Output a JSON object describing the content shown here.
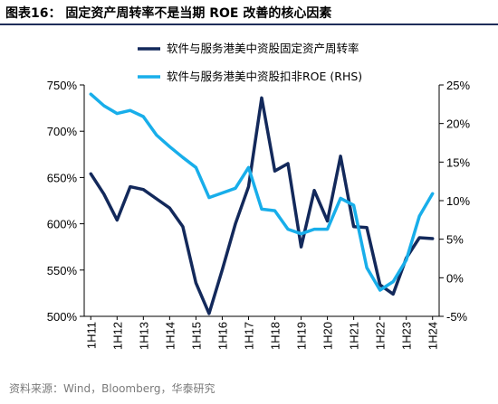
{
  "header": {
    "title": "图表16：  固定资产周转率不是当期 ROE 改善的核心因素"
  },
  "source": "资料来源：Wind，Bloomberg，华泰研究",
  "chart_data": {
    "type": "line",
    "x": [
      "1H11",
      "2H11",
      "1H12",
      "2H12",
      "1H13",
      "2H13",
      "1H14",
      "2H14",
      "1H15",
      "2H15",
      "1H16",
      "2H16",
      "1H17",
      "2H17",
      "1H18",
      "2H18",
      "1H19",
      "2H19",
      "1H20",
      "2H20",
      "1H21",
      "2H21",
      "1H22",
      "2H22",
      "1H23",
      "2H23",
      "1H24"
    ],
    "xticks": [
      "1H11",
      "1H12",
      "1H13",
      "1H14",
      "1H15",
      "1H16",
      "1H17",
      "1H18",
      "1H19",
      "1H20",
      "1H21",
      "1H22",
      "1H23",
      "1H24"
    ],
    "y_left": {
      "lim": [
        500,
        750
      ],
      "ticks": [
        500,
        550,
        600,
        650,
        700,
        750
      ],
      "format": "percent"
    },
    "y_right": {
      "lim": [
        -5,
        25
      ],
      "ticks": [
        -5,
        0,
        5,
        10,
        15,
        20,
        25
      ],
      "format": "percent"
    },
    "legend_position": "top",
    "series": [
      {
        "name": "软件与服务港美中资股固定资产周转率",
        "axis": "left",
        "color": "#13295b",
        "values": [
          654,
          632,
          604,
          640,
          637,
          627,
          617,
          597,
          536,
          503,
          550,
          600,
          640,
          736,
          657,
          665,
          575,
          636,
          603,
          673,
          597,
          596,
          534,
          524,
          563,
          585,
          584
        ]
      },
      {
        "name": "软件与服务港美中资股扣非ROE (RHS)",
        "axis": "right",
        "color": "#18aeea",
        "values": [
          23.8,
          22.3,
          21.3,
          21.7,
          20.9,
          18.5,
          17.0,
          15.6,
          14.3,
          10.4,
          11.0,
          11.6,
          14.3,
          8.9,
          8.7,
          6.3,
          5.7,
          6.3,
          6.3,
          10.3,
          9.4,
          1.3,
          -1.6,
          -0.5,
          2.3,
          8.0,
          10.9
        ]
      }
    ]
  }
}
